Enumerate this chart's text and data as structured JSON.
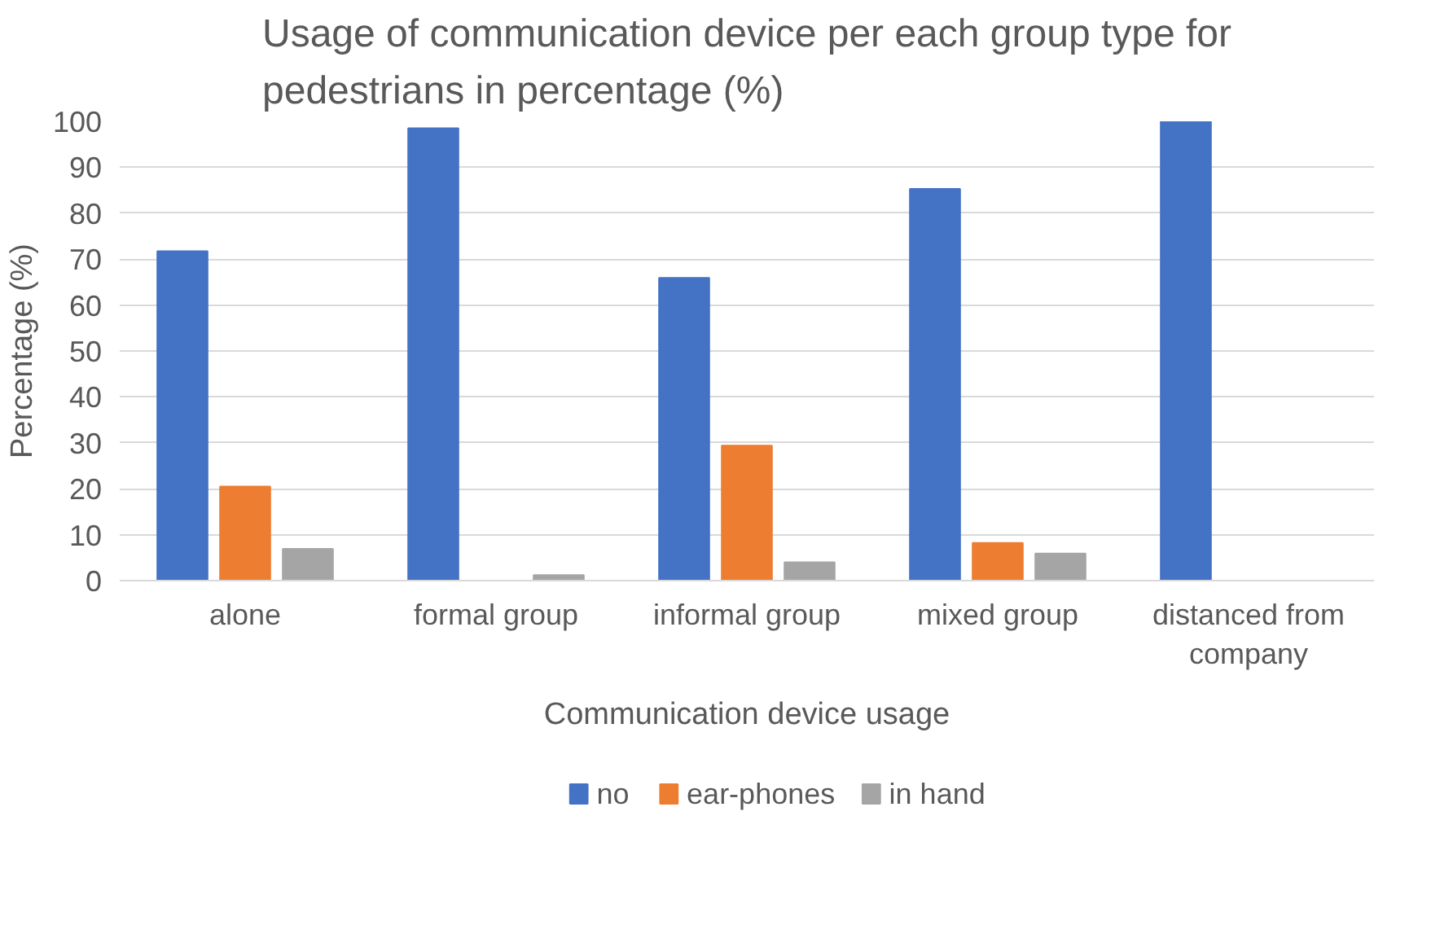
{
  "chart_data": {
    "type": "bar",
    "title": "Usage of communication device per each group type for pedestrians in percentage (%)",
    "xlabel": "Communication device usage",
    "ylabel": "Percentage (%)",
    "categories": [
      "alone",
      "formal group",
      "informal group",
      "mixed group",
      "distanced from company"
    ],
    "series": [
      {
        "name": "no",
        "color": "#4472c4",
        "values": [
          71.7,
          98.5,
          65.9,
          85.3,
          100
        ]
      },
      {
        "name": "ear-phones",
        "color": "#ed7d31",
        "values": [
          20.5,
          0,
          29.4,
          8.2,
          0
        ]
      },
      {
        "name": "in hand",
        "color": "#a5a5a5",
        "values": [
          6.9,
          1.2,
          4.0,
          5.9,
          0
        ]
      }
    ],
    "ylim": [
      0,
      100
    ],
    "yticks": [
      0,
      10,
      20,
      30,
      40,
      50,
      60,
      70,
      80,
      90,
      100
    ],
    "grid": "y",
    "legend": "bottom"
  }
}
